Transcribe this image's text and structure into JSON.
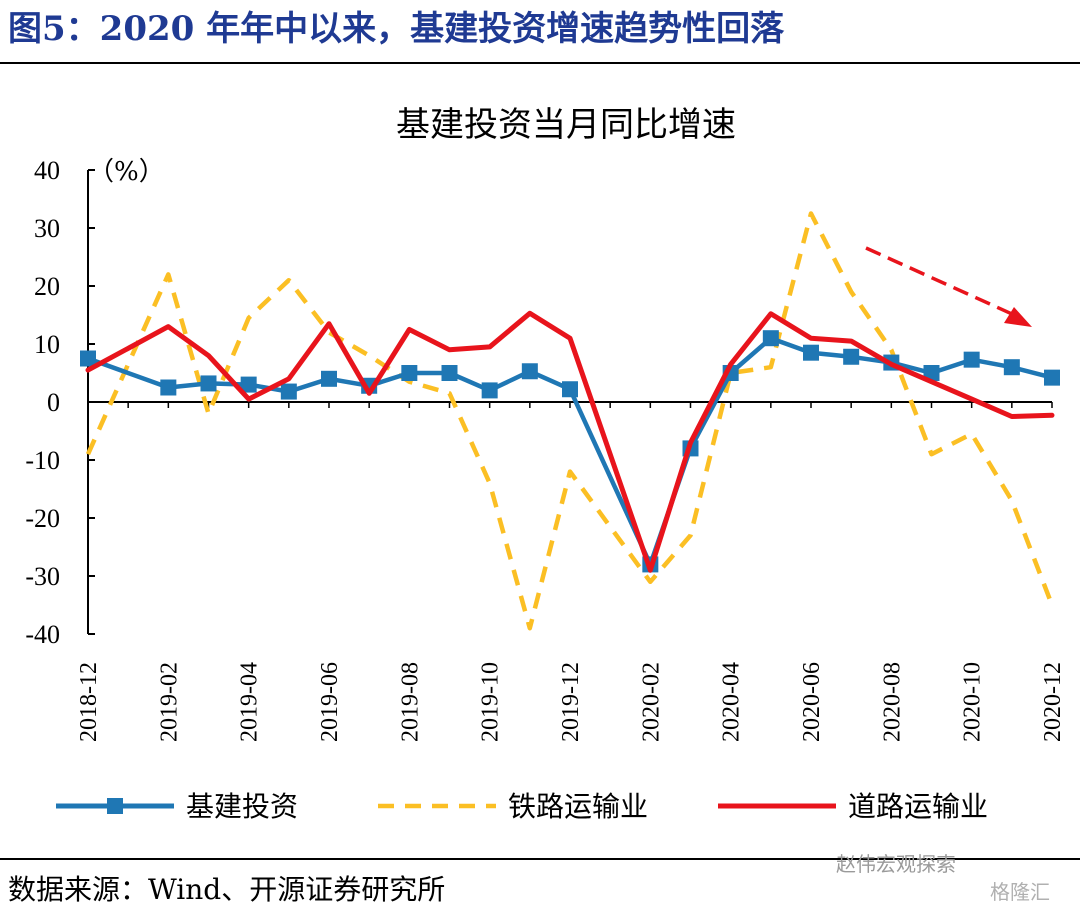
{
  "figure": {
    "title": "图5：2020 年年中以来，基建投资增速趋势性回落",
    "source": "数据来源：Wind、开源证券研究所",
    "watermark": "赵伟宏观探索",
    "watermark_2": "格隆汇"
  },
  "chart_data": {
    "type": "line",
    "title": "基建投资当月同比增速",
    "ylabel": "（%）",
    "ylim": [
      -40,
      40
    ],
    "yticks": [
      40,
      30,
      20,
      10,
      0,
      -10,
      -20,
      -30,
      -40
    ],
    "x": [
      "2018-12",
      "2019-01",
      "2019-02",
      "2019-03",
      "2019-04",
      "2019-05",
      "2019-06",
      "2019-07",
      "2019-08",
      "2019-09",
      "2019-10",
      "2019-11",
      "2019-12",
      "2020-01",
      "2020-02",
      "2020-03",
      "2020-04",
      "2020-05",
      "2020-06",
      "2020-07",
      "2020-08",
      "2020-09",
      "2020-10",
      "2020-11",
      "2020-12"
    ],
    "xtick_labels": [
      "2018-12",
      "2019-02",
      "2019-04",
      "2019-06",
      "2019-08",
      "2019-10",
      "2019-12",
      "2020-02",
      "2020-04",
      "2020-06",
      "2020-08",
      "2020-10",
      "2020-12"
    ],
    "grid": false,
    "legend_position": "bottom",
    "series": [
      {
        "name": "基建投资",
        "style": "solid-square-markers",
        "color": "#1f77b4",
        "values": [
          7.5,
          null,
          2.5,
          3.2,
          3.0,
          1.8,
          4.0,
          2.8,
          5.0,
          5.0,
          2.0,
          5.3,
          2.2,
          null,
          -28.0,
          -8.0,
          5.0,
          11.0,
          8.5,
          7.8,
          6.8,
          5.0,
          7.3,
          6.0,
          4.2
        ]
      },
      {
        "name": "铁路运输业",
        "style": "dashed",
        "color": "#fbbf24",
        "values": [
          -9.0,
          null,
          22.0,
          -2.0,
          14.5,
          21.0,
          12.0,
          8.0,
          3.5,
          1.5,
          -14.0,
          -39.0,
          -12.0,
          null,
          -31.0,
          -23.0,
          5.0,
          6.0,
          32.5,
          19.0,
          9.0,
          -9.0,
          -5.5,
          -17.0,
          -35.0
        ]
      },
      {
        "name": "道路运输业",
        "style": "solid",
        "color": "#e8141c",
        "values": [
          5.5,
          null,
          13.0,
          8.0,
          0.5,
          4.0,
          13.5,
          1.5,
          12.5,
          9.0,
          9.5,
          15.3,
          11.0,
          null,
          -29.0,
          -7.0,
          6.5,
          15.2,
          11.0,
          10.5,
          6.5,
          3.5,
          0.5,
          -2.5,
          -2.3
        ]
      }
    ],
    "annotation": "trend-down-arrow"
  }
}
